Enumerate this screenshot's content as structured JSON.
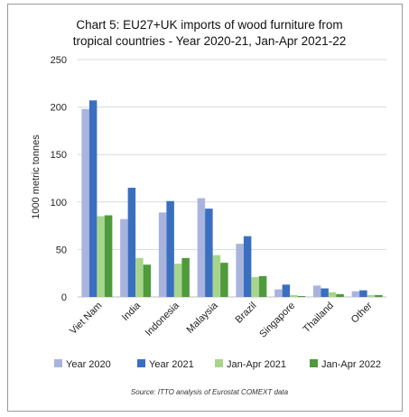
{
  "chart_data": {
    "type": "bar",
    "title": "Chart 5: EU27+UK imports of wood furniture from tropical countries - Year 2020-21, Jan-Apr 2021-22",
    "title_lines": [
      "Chart 5: EU27+UK imports of wood furniture from",
      "tropical countries - Year 2020-21, Jan-Apr 2021-22"
    ],
    "xlabel": "",
    "ylabel": "1000 metric tonnes",
    "ylim": [
      0,
      250
    ],
    "yticks": [
      "0",
      "50",
      "100",
      "150",
      "200",
      "250"
    ],
    "grid": true,
    "legend_position": "bottom",
    "categories": [
      "Viet Nam",
      "India",
      "Indonesia",
      "Malaysia",
      "Brazil",
      "Singapore",
      "Thailand",
      "Other"
    ],
    "series": [
      {
        "name": "Year 2020",
        "color": "#a9b4de",
        "values": [
          198,
          82,
          89,
          104,
          56,
          8,
          12,
          6
        ]
      },
      {
        "name": "Year 2021",
        "color": "#3a6fbf",
        "values": [
          207,
          115,
          101,
          93,
          64,
          13,
          9,
          7
        ]
      },
      {
        "name": "Jan-Apr 2021",
        "color": "#a8d58c",
        "values": [
          85,
          41,
          35,
          44,
          21,
          2,
          5,
          2
        ]
      },
      {
        "name": "Jan-Apr 2022",
        "color": "#4f9a3c",
        "values": [
          86,
          34,
          41,
          36,
          22,
          1,
          3,
          2
        ]
      }
    ],
    "source": "Source: ITTO analysis of Eurostat COMEXT data"
  }
}
